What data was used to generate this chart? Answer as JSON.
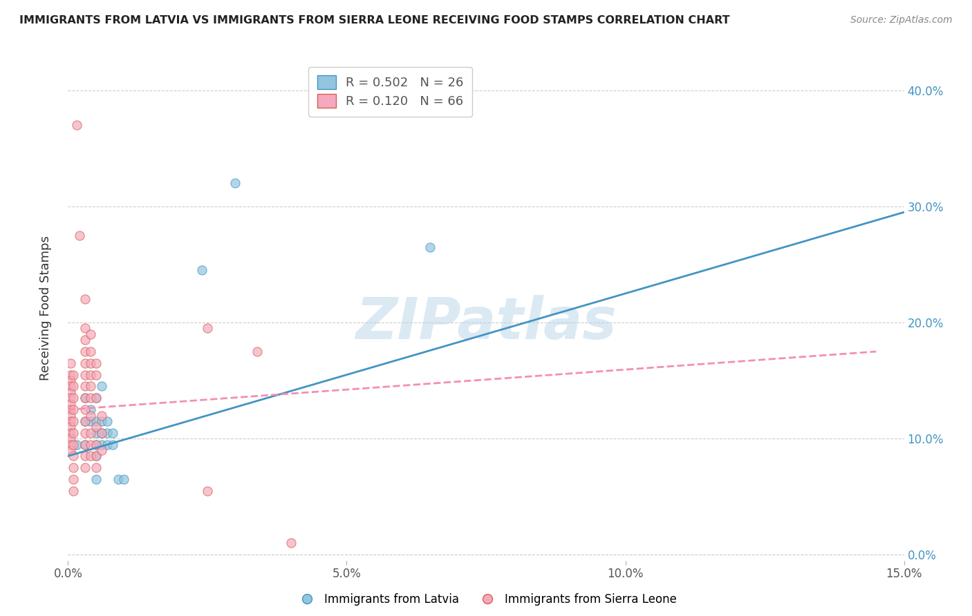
{
  "title": "IMMIGRANTS FROM LATVIA VS IMMIGRANTS FROM SIERRA LEONE RECEIVING FOOD STAMPS CORRELATION CHART",
  "source": "Source: ZipAtlas.com",
  "ylabel": "Receiving Food Stamps",
  "xlim": [
    0.0,
    0.15
  ],
  "ylim": [
    -0.005,
    0.43
  ],
  "x_tick_vals": [
    0.0,
    0.05,
    0.1,
    0.15
  ],
  "x_tick_labels": [
    "0.0%",
    "5.0%",
    "10.0%",
    "15.0%"
  ],
  "y_tick_vals": [
    0.0,
    0.1,
    0.2,
    0.3,
    0.4
  ],
  "y_tick_labels": [
    "0.0%",
    "10.0%",
    "20.0%",
    "30.0%",
    "40.0%"
  ],
  "legend_r1": "R = 0.502",
  "legend_n1": "N = 26",
  "legend_r2": "R = 0.120",
  "legend_n2": "N = 66",
  "watermark": "ZIPatlas",
  "latvia_color": "#92c5de",
  "latvia_edge_color": "#4393c3",
  "sierra_leone_color": "#f4a9be",
  "sierra_leone_edge_color": "#d6604d",
  "latvia_line_color": "#4393c3",
  "sierra_leone_line_color": "#f48fb1",
  "right_axis_color": "#4393c3",
  "latvia_scatter": [
    [
      0.0015,
      0.095
    ],
    [
      0.003,
      0.135
    ],
    [
      0.003,
      0.115
    ],
    [
      0.003,
      0.095
    ],
    [
      0.004,
      0.125
    ],
    [
      0.004,
      0.115
    ],
    [
      0.005,
      0.135
    ],
    [
      0.005,
      0.115
    ],
    [
      0.005,
      0.105
    ],
    [
      0.005,
      0.095
    ],
    [
      0.005,
      0.085
    ],
    [
      0.005,
      0.065
    ],
    [
      0.006,
      0.145
    ],
    [
      0.006,
      0.115
    ],
    [
      0.006,
      0.105
    ],
    [
      0.006,
      0.095
    ],
    [
      0.007,
      0.115
    ],
    [
      0.007,
      0.105
    ],
    [
      0.007,
      0.095
    ],
    [
      0.008,
      0.105
    ],
    [
      0.008,
      0.095
    ],
    [
      0.009,
      0.065
    ],
    [
      0.01,
      0.065
    ],
    [
      0.024,
      0.245
    ],
    [
      0.03,
      0.32
    ],
    [
      0.065,
      0.265
    ]
  ],
  "sierra_leone_scatter": [
    [
      0.0005,
      0.165
    ],
    [
      0.0005,
      0.155
    ],
    [
      0.0005,
      0.15
    ],
    [
      0.0005,
      0.145
    ],
    [
      0.0005,
      0.14
    ],
    [
      0.0005,
      0.135
    ],
    [
      0.0005,
      0.13
    ],
    [
      0.0005,
      0.125
    ],
    [
      0.0005,
      0.12
    ],
    [
      0.0005,
      0.115
    ],
    [
      0.0005,
      0.11
    ],
    [
      0.0005,
      0.105
    ],
    [
      0.0005,
      0.1
    ],
    [
      0.0005,
      0.095
    ],
    [
      0.0005,
      0.09
    ],
    [
      0.001,
      0.155
    ],
    [
      0.001,
      0.145
    ],
    [
      0.001,
      0.135
    ],
    [
      0.001,
      0.125
    ],
    [
      0.001,
      0.115
    ],
    [
      0.001,
      0.105
    ],
    [
      0.001,
      0.095
    ],
    [
      0.001,
      0.085
    ],
    [
      0.001,
      0.075
    ],
    [
      0.001,
      0.065
    ],
    [
      0.001,
      0.055
    ],
    [
      0.0015,
      0.37
    ],
    [
      0.002,
      0.275
    ],
    [
      0.003,
      0.22
    ],
    [
      0.003,
      0.195
    ],
    [
      0.003,
      0.185
    ],
    [
      0.003,
      0.175
    ],
    [
      0.003,
      0.165
    ],
    [
      0.003,
      0.155
    ],
    [
      0.003,
      0.145
    ],
    [
      0.003,
      0.135
    ],
    [
      0.003,
      0.125
    ],
    [
      0.003,
      0.115
    ],
    [
      0.003,
      0.105
    ],
    [
      0.003,
      0.095
    ],
    [
      0.003,
      0.085
    ],
    [
      0.003,
      0.075
    ],
    [
      0.004,
      0.19
    ],
    [
      0.004,
      0.175
    ],
    [
      0.004,
      0.165
    ],
    [
      0.004,
      0.155
    ],
    [
      0.004,
      0.145
    ],
    [
      0.004,
      0.135
    ],
    [
      0.004,
      0.12
    ],
    [
      0.004,
      0.105
    ],
    [
      0.004,
      0.095
    ],
    [
      0.004,
      0.085
    ],
    [
      0.005,
      0.165
    ],
    [
      0.005,
      0.155
    ],
    [
      0.005,
      0.135
    ],
    [
      0.005,
      0.11
    ],
    [
      0.005,
      0.095
    ],
    [
      0.005,
      0.085
    ],
    [
      0.005,
      0.075
    ],
    [
      0.006,
      0.12
    ],
    [
      0.006,
      0.105
    ],
    [
      0.006,
      0.09
    ],
    [
      0.025,
      0.195
    ],
    [
      0.025,
      0.055
    ],
    [
      0.034,
      0.175
    ],
    [
      0.04,
      0.01
    ]
  ],
  "latvia_trendline_x": [
    0.0,
    0.15
  ],
  "latvia_trendline_y": [
    0.085,
    0.295
  ],
  "sierra_leone_trendline_x": [
    0.0,
    0.145
  ],
  "sierra_leone_trendline_y": [
    0.125,
    0.175
  ]
}
